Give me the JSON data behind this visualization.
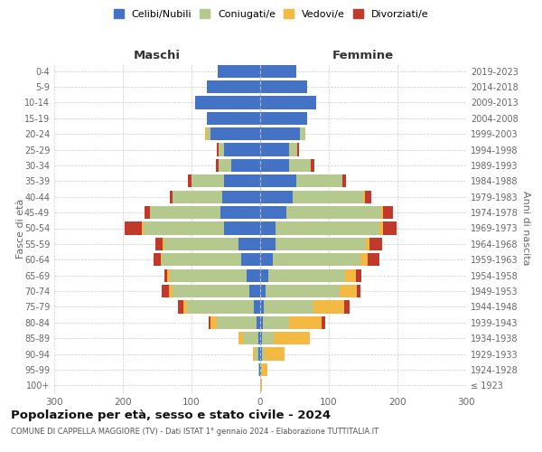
{
  "age_groups": [
    "100+",
    "95-99",
    "90-94",
    "85-89",
    "80-84",
    "75-79",
    "70-74",
    "65-69",
    "60-64",
    "55-59",
    "50-54",
    "45-49",
    "40-44",
    "35-39",
    "30-34",
    "25-29",
    "20-24",
    "15-19",
    "10-14",
    "5-9",
    "0-4"
  ],
  "birth_years": [
    "≤ 1923",
    "1924-1928",
    "1929-1933",
    "1934-1938",
    "1939-1943",
    "1944-1948",
    "1949-1953",
    "1954-1958",
    "1959-1963",
    "1964-1968",
    "1969-1973",
    "1974-1978",
    "1979-1983",
    "1984-1988",
    "1989-1993",
    "1994-1998",
    "1999-2003",
    "2004-2008",
    "2009-2013",
    "2014-2018",
    "2019-2023"
  ],
  "males": {
    "celibi": [
      0,
      1,
      2,
      3,
      5,
      9,
      16,
      20,
      28,
      32,
      52,
      58,
      55,
      52,
      42,
      52,
      72,
      78,
      95,
      78,
      62
    ],
    "coniugati": [
      0,
      2,
      6,
      22,
      58,
      98,
      112,
      112,
      115,
      108,
      118,
      103,
      72,
      48,
      18,
      8,
      6,
      0,
      0,
      0,
      0
    ],
    "vedovi": [
      0,
      0,
      2,
      6,
      10,
      5,
      5,
      3,
      2,
      2,
      2,
      0,
      0,
      0,
      0,
      0,
      2,
      0,
      0,
      0,
      0
    ],
    "divorziati": [
      0,
      0,
      0,
      0,
      2,
      8,
      10,
      5,
      10,
      10,
      25,
      8,
      5,
      5,
      5,
      3,
      0,
      0,
      0,
      0,
      0
    ]
  },
  "females": {
    "nubili": [
      0,
      1,
      2,
      2,
      4,
      5,
      8,
      12,
      18,
      22,
      22,
      38,
      48,
      52,
      42,
      42,
      58,
      68,
      82,
      68,
      52
    ],
    "coniugate": [
      0,
      2,
      5,
      18,
      38,
      72,
      108,
      112,
      128,
      132,
      152,
      138,
      102,
      68,
      32,
      12,
      8,
      0,
      0,
      0,
      0
    ],
    "vedove": [
      2,
      8,
      28,
      52,
      48,
      45,
      25,
      15,
      10,
      5,
      5,
      3,
      2,
      0,
      0,
      0,
      0,
      0,
      0,
      0,
      0
    ],
    "divorziate": [
      0,
      0,
      0,
      0,
      5,
      8,
      5,
      8,
      18,
      18,
      20,
      15,
      10,
      5,
      5,
      3,
      0,
      0,
      0,
      0,
      0
    ]
  },
  "colors": {
    "celibi_nubili": "#4472c4",
    "coniugati": "#b5c98e",
    "vedovi": "#f4b942",
    "divorziati": "#c0392b"
  },
  "title": "Popolazione per età, sesso e stato civile - 2024",
  "subtitle": "COMUNE DI CAPPELLA MAGGIORE (TV) - Dati ISTAT 1° gennaio 2024 - Elaborazione TUTTITALIA.IT",
  "xlabel_left": "Maschi",
  "xlabel_right": "Femmine",
  "ylabel_left": "Fasce di età",
  "ylabel_right": "Anni di nascita",
  "xlim": 300,
  "xticks": [
    -300,
    -200,
    -100,
    0,
    100,
    200,
    300
  ],
  "xtick_labels": [
    "300",
    "200",
    "100",
    "0",
    "100",
    "200",
    "300"
  ],
  "legend_labels": [
    "Celibi/Nubili",
    "Coniugati/e",
    "Vedovi/e",
    "Divorziati/e"
  ],
  "bg_color": "#ffffff",
  "grid_color": "#cccccc"
}
